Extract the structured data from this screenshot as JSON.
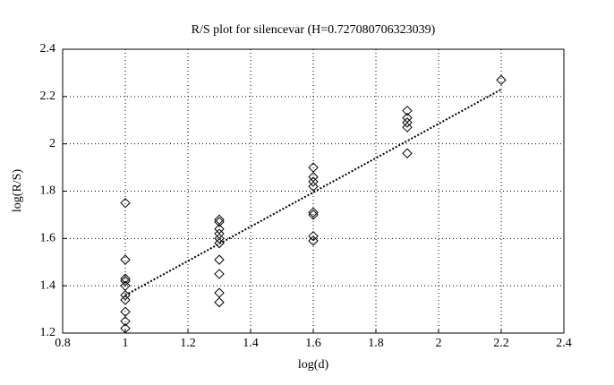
{
  "chart_data": {
    "type": "scatter",
    "title": "R/S plot for silencevar (H=0.727080706323039)",
    "x_label": "log(d)",
    "y_label": "log(R/S)",
    "x": [
      1,
      1,
      1,
      1,
      1,
      1,
      1,
      1,
      1,
      1,
      1.3,
      1.3,
      1.3,
      1.3,
      1.3,
      1.3,
      1.3,
      1.3,
      1.3,
      1.3,
      1.6,
      1.6,
      1.6,
      1.6,
      1.6,
      1.6,
      1.6,
      1.6,
      1.9,
      1.9,
      1.9,
      1.9,
      1.9,
      2.2
    ],
    "y": [
      1.75,
      1.51,
      1.43,
      1.42,
      1.4,
      1.36,
      1.34,
      1.29,
      1.25,
      1.22,
      1.68,
      1.67,
      1.64,
      1.62,
      1.6,
      1.58,
      1.51,
      1.45,
      1.37,
      1.33,
      1.9,
      1.86,
      1.84,
      1.82,
      1.71,
      1.7,
      1.61,
      1.59,
      2.14,
      2.11,
      2.09,
      2.07,
      1.96,
      2.27
    ],
    "fit": {
      "x": [
        1,
        2.2
      ],
      "y": [
        1.36,
        2.23
      ]
    },
    "color": "#000000",
    "xlim": [
      0.8,
      2.4
    ],
    "xticks": [
      0.8,
      1,
      1.2,
      1.4,
      1.6,
      1.8,
      2,
      2.2,
      2.4
    ],
    "ylim": [
      1.2,
      2.4
    ],
    "yticks": [
      1.2,
      1.4,
      1.6,
      1.8,
      2,
      2.2,
      2.4
    ],
    "grid": true
  }
}
